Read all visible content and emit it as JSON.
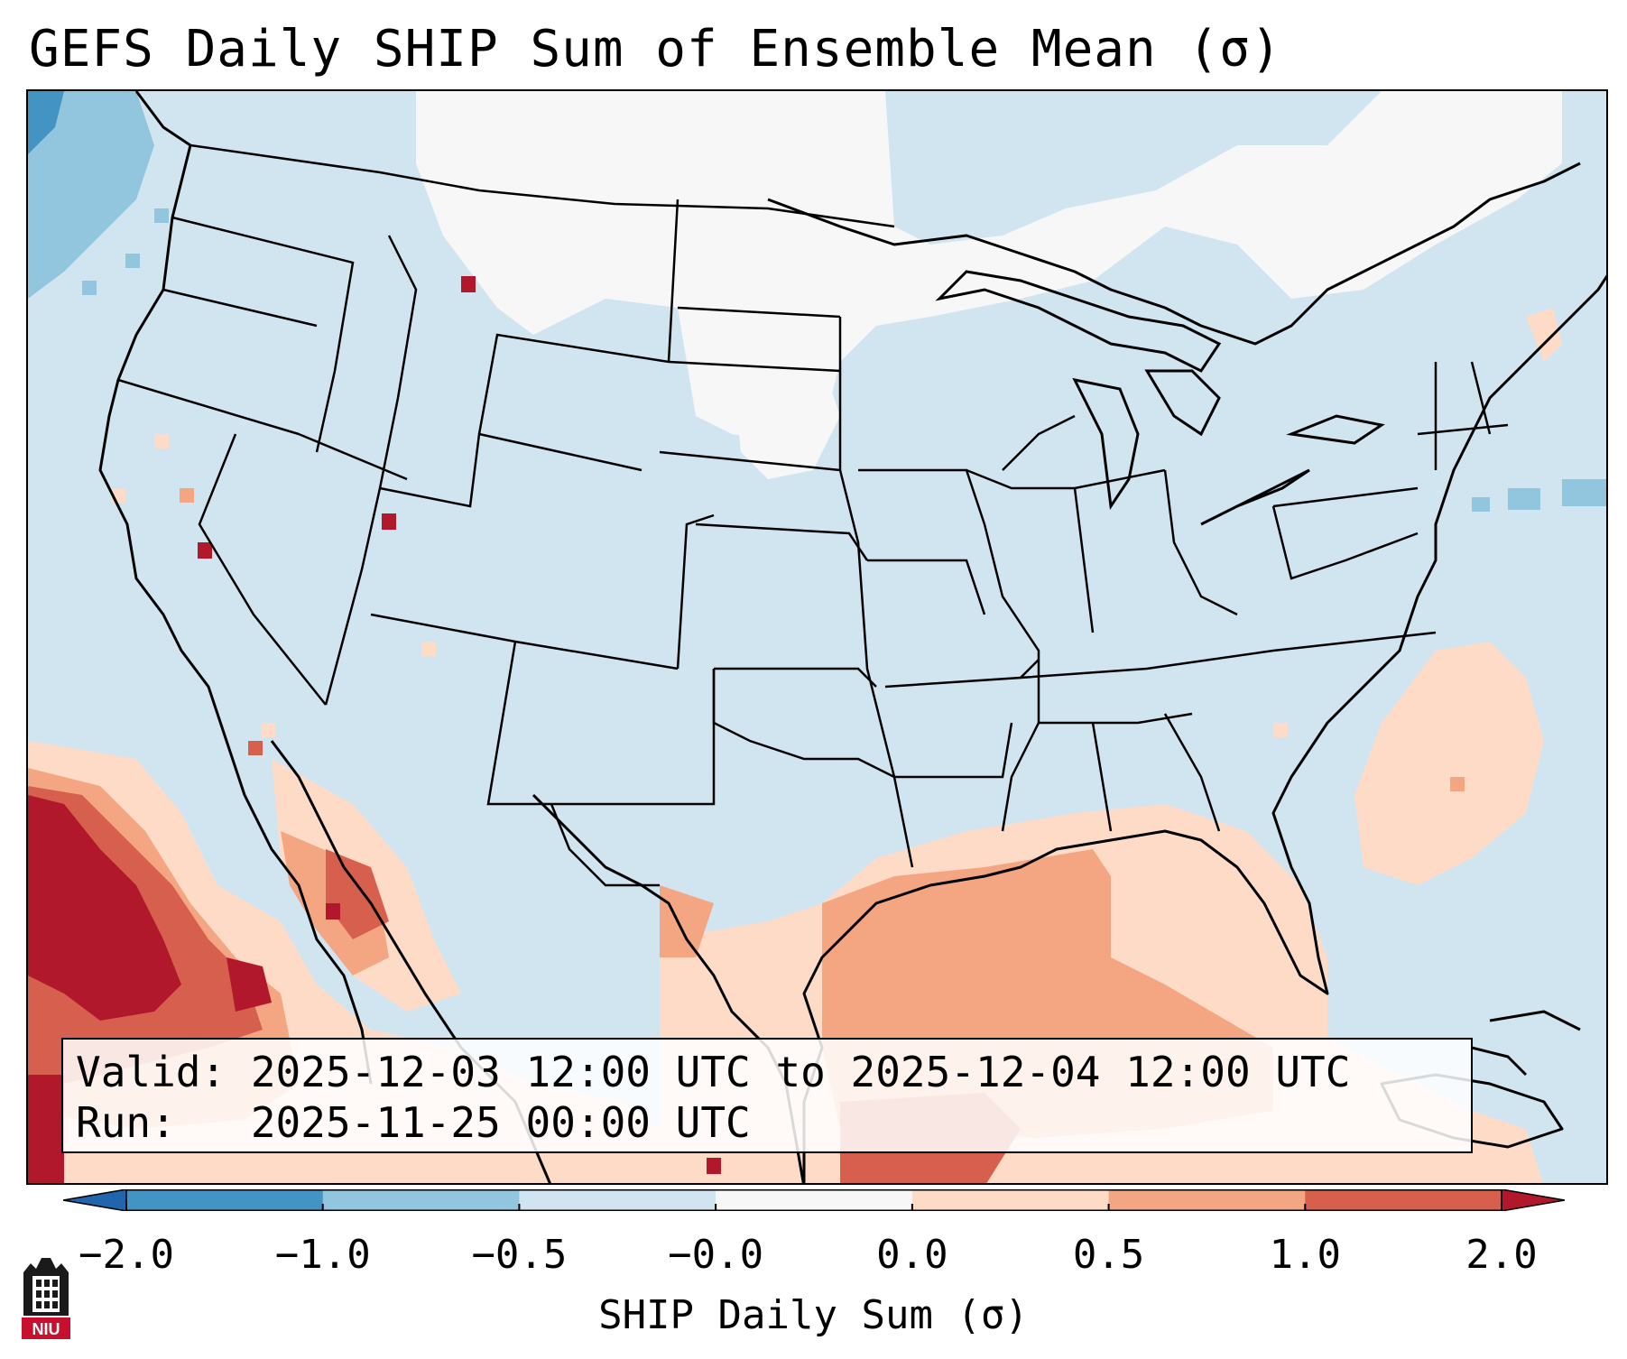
{
  "title": "GEFS Daily SHIP Sum of Ensemble Mean (σ)",
  "info": {
    "valid": "Valid: 2025-12-03 12:00 UTC to 2025-12-04 12:00 UTC",
    "run": "Run:   2025-11-25 00:00 UTC"
  },
  "colorbar": {
    "label": "SHIP Daily Sum (σ)",
    "ticks": [
      "−2.0",
      "−1.0",
      "−0.5",
      "−0.0",
      "0.0",
      "0.5",
      "1.0",
      "2.0"
    ],
    "colors": [
      "#4393c3",
      "#92c5de",
      "#d1e5f0",
      "#f7f7f7",
      "#fddbc7",
      "#f4a582",
      "#d6604d"
    ],
    "extend_low": "#2166ac",
    "extend_high": "#b2182b"
  },
  "logo": {
    "text": "NIU",
    "icon": "niu-logo-icon"
  },
  "map": {
    "region": "CONUS",
    "background_color": "#d1e5f0"
  }
}
